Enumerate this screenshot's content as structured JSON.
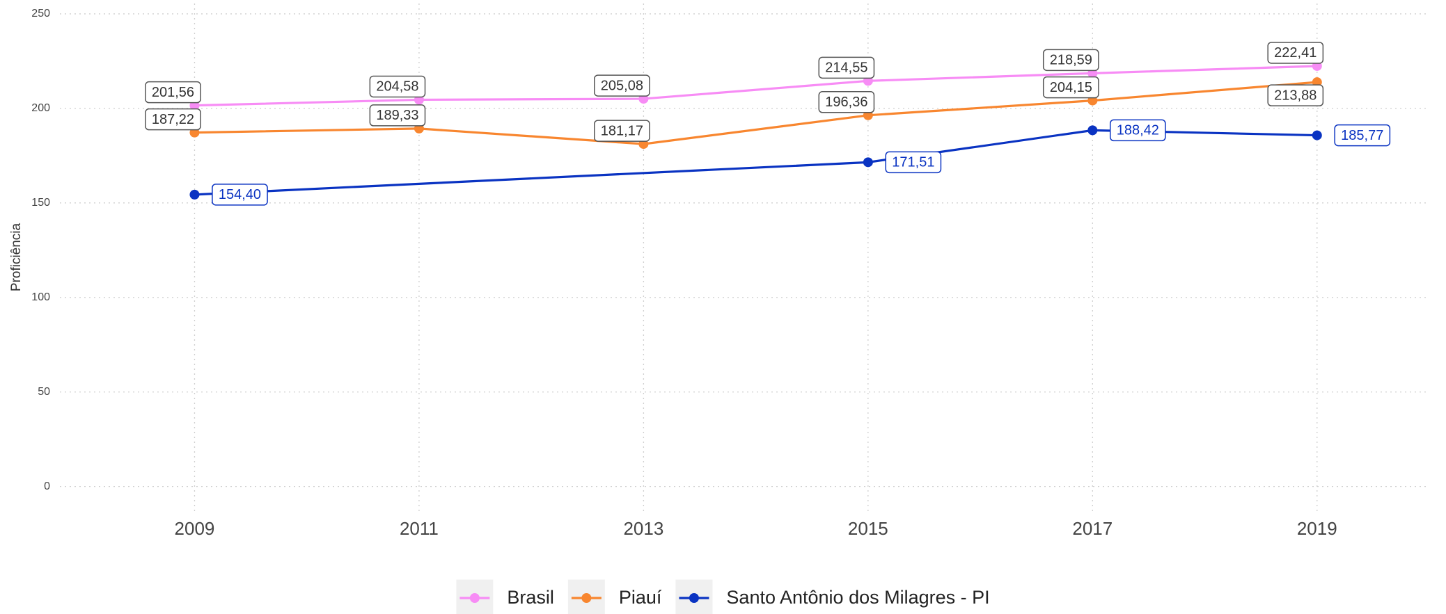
{
  "chart_data": {
    "type": "line",
    "y_label": "Proficiência",
    "xlim": [
      2007.8,
      2020
    ],
    "xticks": [
      2009,
      2011,
      2013,
      2015,
      2017,
      2019
    ],
    "ylim": [
      -13,
      255.5
    ],
    "yticks": [
      0,
      50,
      100,
      150,
      200,
      250
    ],
    "grid": true,
    "legend": "bottom",
    "series": [
      {
        "name": "Brasil",
        "color": "#f78cf5",
        "x": [
          2009,
          2011,
          2013,
          2015,
          2017,
          2019
        ],
        "values": [
          201.56,
          204.58,
          205.08,
          214.55,
          218.59,
          222.41
        ],
        "value_labels": [
          "201,56",
          "204,58",
          "205,08",
          "214,55",
          "218,59",
          "222,41"
        ]
      },
      {
        "name": "Piauí",
        "color": "#f8862f",
        "x": [
          2009,
          2011,
          2013,
          2015,
          2017,
          2019
        ],
        "values": [
          187.22,
          189.33,
          181.17,
          196.36,
          204.15,
          213.88
        ],
        "value_labels": [
          "187,22",
          "189,33",
          "181,17",
          "196,36",
          "204,15",
          "213,88"
        ]
      },
      {
        "name": "Santo Antônio dos Milagres - PI",
        "color": "#0a33c2",
        "x": [
          2009,
          2015,
          2017,
          2019
        ],
        "values": [
          154.4,
          171.51,
          188.42,
          185.77
        ],
        "value_labels": [
          "154,40",
          "171,51",
          "188,42",
          "185,77"
        ]
      }
    ]
  }
}
